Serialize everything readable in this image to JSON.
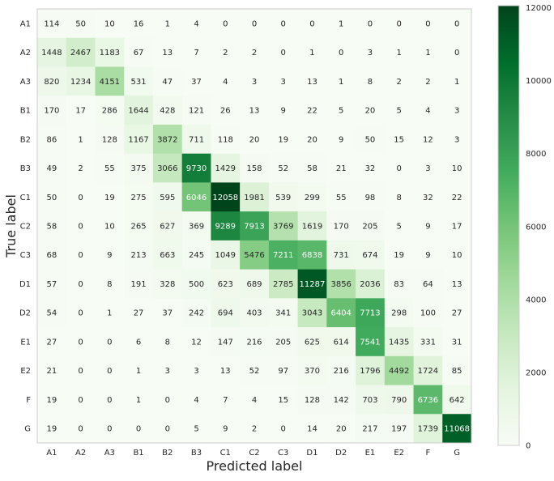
{
  "chart_data": {
    "type": "heatmap",
    "xlabel": "Predicted label",
    "ylabel": "True label",
    "x_categories": [
      "A1",
      "A2",
      "A3",
      "B1",
      "B2",
      "B3",
      "C1",
      "C2",
      "C3",
      "D1",
      "D2",
      "E1",
      "E2",
      "F",
      "G"
    ],
    "y_categories": [
      "A1",
      "A2",
      "A3",
      "B1",
      "B2",
      "B3",
      "C1",
      "C2",
      "C3",
      "D1",
      "D2",
      "E1",
      "E2",
      "F",
      "G"
    ],
    "values": [
      [
        114,
        50,
        10,
        16,
        1,
        4,
        0,
        0,
        0,
        0,
        1,
        0,
        0,
        0,
        0
      ],
      [
        1448,
        2467,
        1183,
        67,
        13,
        7,
        2,
        2,
        0,
        1,
        0,
        3,
        1,
        1,
        0
      ],
      [
        820,
        1234,
        4151,
        531,
        47,
        37,
        4,
        3,
        3,
        13,
        1,
        8,
        2,
        2,
        1
      ],
      [
        170,
        17,
        286,
        1644,
        428,
        121,
        26,
        13,
        9,
        22,
        5,
        20,
        5,
        4,
        3
      ],
      [
        86,
        1,
        128,
        1167,
        3872,
        711,
        118,
        20,
        19,
        20,
        9,
        50,
        15,
        12,
        3
      ],
      [
        49,
        2,
        55,
        375,
        3066,
        9730,
        1429,
        158,
        52,
        58,
        21,
        32,
        0,
        3,
        10
      ],
      [
        50,
        0,
        19,
        275,
        595,
        6046,
        12058,
        1981,
        539,
        299,
        55,
        98,
        8,
        32,
        22
      ],
      [
        58,
        0,
        10,
        265,
        627,
        369,
        9289,
        7913,
        3769,
        1619,
        170,
        205,
        5,
        9,
        17
      ],
      [
        68,
        0,
        9,
        213,
        663,
        245,
        1049,
        5476,
        7211,
        6838,
        731,
        674,
        19,
        9,
        10
      ],
      [
        57,
        0,
        8,
        191,
        328,
        500,
        623,
        689,
        2785,
        11287,
        3856,
        2036,
        83,
        64,
        13
      ],
      [
        54,
        0,
        1,
        27,
        37,
        242,
        694,
        403,
        341,
        3043,
        6404,
        7713,
        298,
        100,
        27
      ],
      [
        27,
        0,
        0,
        6,
        8,
        12,
        147,
        216,
        205,
        625,
        614,
        7541,
        1435,
        331,
        31
      ],
      [
        21,
        0,
        0,
        1,
        3,
        3,
        13,
        52,
        97,
        370,
        216,
        1796,
        4492,
        1724,
        85
      ],
      [
        19,
        0,
        0,
        1,
        0,
        4,
        7,
        4,
        15,
        128,
        142,
        703,
        790,
        6736,
        642
      ],
      [
        19,
        0,
        0,
        0,
        0,
        5,
        9,
        2,
        0,
        14,
        20,
        217,
        197,
        1739,
        11068
      ]
    ],
    "colormap": "Greens",
    "vmin": 0,
    "vmax": 12058,
    "colorbar_ticks": [
      0,
      2000,
      4000,
      6000,
      8000,
      10000,
      12000
    ],
    "colorbar_tick_labels": [
      "0",
      "2000",
      "4000",
      "6000",
      "8000",
      "10000",
      "12000"
    ],
    "grid": false
  },
  "colors": {
    "low": "#f7fcf5",
    "high": "#00441b",
    "text_dark": "#262626",
    "text_light": "#ffffff",
    "frame": "#cccccc"
  }
}
